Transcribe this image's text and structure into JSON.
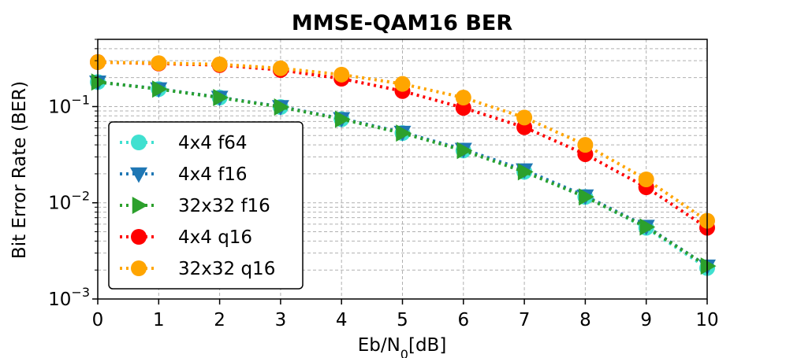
{
  "chart_data": {
    "type": "line",
    "title": "MMSE-QAM16 BER",
    "xlabel": "Eb/N",
    "xlabel_sub": "0",
    "xlabel_suffix": "[dB]",
    "ylabel": "Bit Error Rate (BER)",
    "x": [
      0,
      1,
      2,
      3,
      4,
      5,
      6,
      7,
      8,
      9,
      10
    ],
    "xlim": [
      0,
      10
    ],
    "ylim": [
      0.001,
      0.5
    ],
    "yscale": "log",
    "grid": true,
    "legend_position": "lower-left",
    "x_ticks": [
      "0",
      "1",
      "2",
      "3",
      "4",
      "5",
      "6",
      "7",
      "8",
      "9",
      "10"
    ],
    "y_ticks": [
      {
        "value": 0.001,
        "base": "10",
        "exp": "−3"
      },
      {
        "value": 0.01,
        "base": "10",
        "exp": "−2"
      },
      {
        "value": 0.1,
        "base": "10",
        "exp": "−1"
      }
    ],
    "series": [
      {
        "name": "4x4 f64",
        "marker": "circle",
        "color": "#40e0d0",
        "values": [
          0.18,
          0.152,
          0.124,
          0.099,
          0.074,
          0.053,
          0.035,
          0.021,
          0.0115,
          0.0055,
          0.0021
        ]
      },
      {
        "name": "4x4 f16",
        "marker": "triangle-down",
        "color": "#1f77b4",
        "values": [
          0.18,
          0.153,
          0.125,
          0.1,
          0.075,
          0.054,
          0.036,
          0.022,
          0.0118,
          0.0057,
          0.0022
        ]
      },
      {
        "name": "32x32 f16",
        "marker": "triangle-right",
        "color": "#2ca02c",
        "values": [
          0.18,
          0.152,
          0.124,
          0.099,
          0.074,
          0.053,
          0.035,
          0.021,
          0.0115,
          0.0056,
          0.0022
        ]
      },
      {
        "name": "4x4 q16",
        "marker": "circle",
        "color": "#ff0000",
        "values": [
          0.29,
          0.28,
          0.27,
          0.24,
          0.195,
          0.145,
          0.097,
          0.061,
          0.032,
          0.0145,
          0.0055
        ]
      },
      {
        "name": "32x32 q16",
        "marker": "circle",
        "color": "#ffa500",
        "values": [
          0.29,
          0.283,
          0.275,
          0.25,
          0.215,
          0.172,
          0.124,
          0.077,
          0.04,
          0.0175,
          0.0065
        ]
      }
    ]
  }
}
